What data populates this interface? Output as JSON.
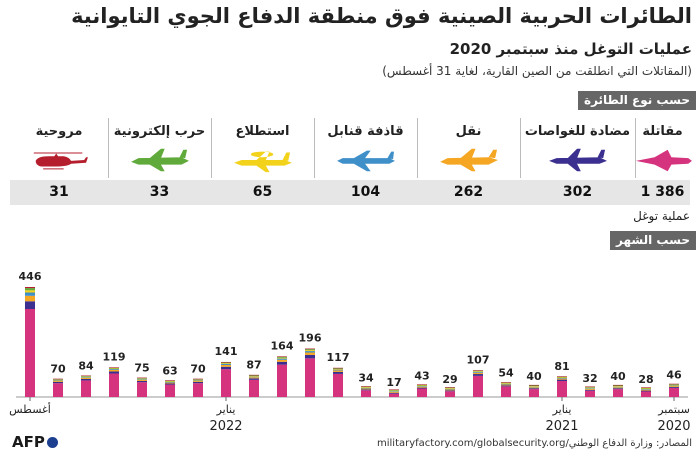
{
  "header": {
    "title": "الطائرات الحربية الصينية فوق منطقة الدفاع الجوي التايوانية",
    "subtitle": "عمليات التوغل منذ سبتمبر 2020",
    "note": "(المقاتلات التي انطلقت من الصين القارية، لغاية 31 أغسطس)"
  },
  "sections": {
    "by_type": "حسب نوع الطائرة",
    "by_month": "حسب الشهر",
    "unit": "عملية توغل"
  },
  "aircraft_types": [
    {
      "label": "مقاتلة",
      "value": "1 386",
      "color": "#d6337f",
      "icon": "fighter-jet-icon"
    },
    {
      "label": "مضادة للغواصات",
      "value": "302",
      "color": "#3b2f8f",
      "icon": "antisub-plane-icon"
    },
    {
      "label": "نقل",
      "value": "262",
      "color": "#f5a623",
      "icon": "transport-plane-icon"
    },
    {
      "label": "قاذفة قنابل",
      "value": "104",
      "color": "#3f8fc9",
      "icon": "bomber-icon"
    },
    {
      "label": "استطلاع",
      "value": "65",
      "color": "#f2d21b",
      "icon": "recon-plane-icon"
    },
    {
      "label": "حرب إلكترونية",
      "value": "33",
      "color": "#5faa3a",
      "icon": "ew-plane-icon"
    },
    {
      "label": "مروحية",
      "value": "31",
      "color": "#b51f2d",
      "icon": "helicopter-icon"
    }
  ],
  "chart_data": {
    "type": "bar",
    "stacked": true,
    "title": "حسب الشهر",
    "ylabel": "عملية توغل",
    "categories": [
      "2020-09",
      "2020-10",
      "2020-11",
      "2020-12",
      "2021-01",
      "2021-02",
      "2021-03",
      "2021-04",
      "2021-05",
      "2021-06",
      "2021-07",
      "2021-08",
      "2021-09",
      "2021-10",
      "2021-11",
      "2021-12",
      "2022-01",
      "2022-02",
      "2022-03",
      "2022-04",
      "2022-05",
      "2022-06",
      "2022-07",
      "2022-08"
    ],
    "values": [
      46,
      28,
      40,
      32,
      81,
      40,
      54,
      107,
      29,
      43,
      17,
      34,
      117,
      196,
      164,
      87,
      141,
      70,
      63,
      75,
      119,
      84,
      70,
      446
    ],
    "series_colors": [
      "#d6337f",
      "#3b2f8f",
      "#f5a623",
      "#3f8fc9",
      "#f2d21b",
      "#5faa3a",
      "#b51f2d"
    ],
    "x_tick_labels": [
      {
        "month": "2020-09",
        "label": "سبتمبر",
        "year": "2020"
      },
      {
        "month": "2021-01",
        "label": "يناير",
        "year": "2021"
      },
      {
        "month": "2022-01",
        "label": "يناير",
        "year": "2022"
      },
      {
        "month": "2022-08",
        "label": "أغسطس",
        "year": ""
      }
    ],
    "ylim": [
      0,
      446
    ]
  },
  "footer": {
    "sources": "المصادر: وزارة الدفاع الوطني/militaryfactory.com/globalsecurity.org",
    "credit": "AFP"
  }
}
